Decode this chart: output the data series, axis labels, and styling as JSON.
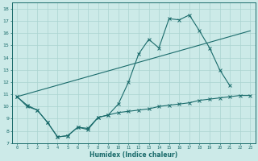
{
  "bg_color": "#cceae8",
  "grid_color": "#aad4d0",
  "line_color": "#1a6b6b",
  "xlabel": "Humidex (Indice chaleur)",
  "xlim": [
    -0.5,
    23.5
  ],
  "ylim": [
    7,
    18.5
  ],
  "yticks": [
    7,
    8,
    9,
    10,
    11,
    12,
    13,
    14,
    15,
    16,
    17,
    18
  ],
  "xticks": [
    0,
    1,
    2,
    3,
    4,
    5,
    6,
    7,
    8,
    9,
    10,
    11,
    12,
    13,
    14,
    15,
    16,
    17,
    18,
    19,
    20,
    21,
    22,
    23
  ],
  "line1_x": [
    0,
    1,
    2,
    3,
    4,
    5,
    6,
    7,
    8,
    9,
    10,
    11,
    12,
    13,
    14,
    15,
    16,
    17,
    18,
    19,
    20,
    21
  ],
  "line1_y": [
    10.8,
    10.1,
    9.7,
    8.7,
    7.5,
    7.6,
    8.3,
    8.1,
    9.1,
    9.3,
    10.2,
    12.0,
    14.3,
    15.5,
    14.8,
    17.2,
    17.1,
    17.5,
    16.2,
    14.8,
    13.0,
    11.7
  ],
  "line2_x": [
    0,
    23
  ],
  "line2_y": [
    10.8,
    16.2
  ],
  "line3_x": [
    0,
    1,
    2,
    3,
    4,
    5,
    6,
    7,
    8,
    9,
    10,
    11,
    12,
    13,
    14,
    15,
    16,
    17,
    18,
    19,
    20,
    21,
    22,
    23
  ],
  "line3_y": [
    10.8,
    10.0,
    9.7,
    8.7,
    7.5,
    7.6,
    8.3,
    8.2,
    9.1,
    9.3,
    9.5,
    9.6,
    9.7,
    9.8,
    10.0,
    10.1,
    10.2,
    10.3,
    10.5,
    10.6,
    10.7,
    10.8,
    10.9,
    10.9
  ]
}
